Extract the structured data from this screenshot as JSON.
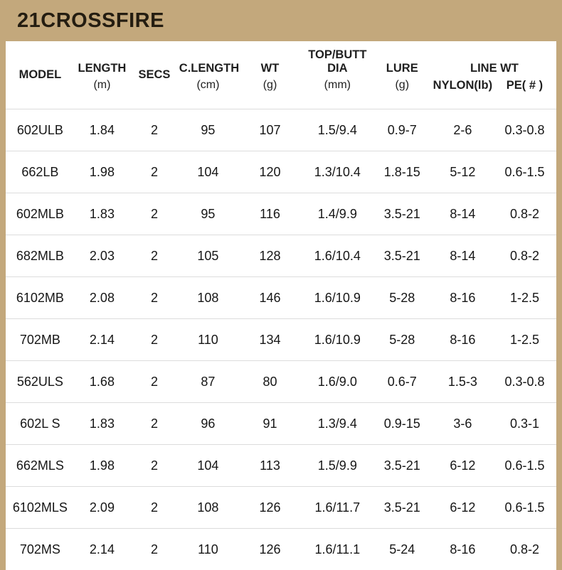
{
  "title": "21CROSSFIRE",
  "colors": {
    "background": "#c3a87c",
    "table_background": "#ffffff",
    "title_text": "#241d11",
    "row_divider": "#dcdcdc"
  },
  "table": {
    "headers": {
      "model": "MODEL",
      "length": "LENGTH",
      "length_unit": "(m)",
      "secs": "SECS",
      "clength": "C.LENGTH",
      "clength_unit": "(cm)",
      "wt": "WT",
      "wt_unit": "(g)",
      "topbutt": "TOP/BUTT DIA",
      "topbutt_unit": "(mm)",
      "lure": "LURE",
      "lure_unit": "(g)",
      "linewt": "LINE WT",
      "nylon": "NYLON(lb)",
      "pe": "PE( # )"
    },
    "rows": [
      [
        "602ULB",
        "1.84",
        "2",
        "95",
        "107",
        "1.5/9.4",
        "0.9-7",
        "2-6",
        "0.3-0.8"
      ],
      [
        "662LB",
        "1.98",
        "2",
        "104",
        "120",
        "1.3/10.4",
        "1.8-15",
        "5-12",
        "0.6-1.5"
      ],
      [
        "602MLB",
        "1.83",
        "2",
        "95",
        "116",
        "1.4/9.9",
        "3.5-21",
        "8-14",
        "0.8-2"
      ],
      [
        "682MLB",
        "2.03",
        "2",
        "105",
        "128",
        "1.6/10.4",
        "3.5-21",
        "8-14",
        "0.8-2"
      ],
      [
        "6102MB",
        "2.08",
        "2",
        "108",
        "146",
        "1.6/10.9",
        "5-28",
        "8-16",
        "1-2.5"
      ],
      [
        "702MB",
        "2.14",
        "2",
        "110",
        "134",
        "1.6/10.9",
        "5-28",
        "8-16",
        "1-2.5"
      ],
      [
        "562ULS",
        "1.68",
        "2",
        "87",
        "80",
        "1.6/9.0",
        "0.6-7",
        "1.5-3",
        "0.3-0.8"
      ],
      [
        "602L S",
        "1.83",
        "2",
        "96",
        "91",
        "1.3/9.4",
        "0.9-15",
        "3-6",
        "0.3-1"
      ],
      [
        "662MLS",
        "1.98",
        "2",
        "104",
        "113",
        "1.5/9.9",
        "3.5-21",
        "6-12",
        "0.6-1.5"
      ],
      [
        "6102MLS",
        "2.09",
        "2",
        "108",
        "126",
        "1.6/11.7",
        "3.5-21",
        "6-12",
        "0.6-1.5"
      ],
      [
        "702MS",
        "2.14",
        "2",
        "110",
        "126",
        "1.6/11.1",
        "5-24",
        "8-16",
        "0.8-2"
      ]
    ]
  }
}
